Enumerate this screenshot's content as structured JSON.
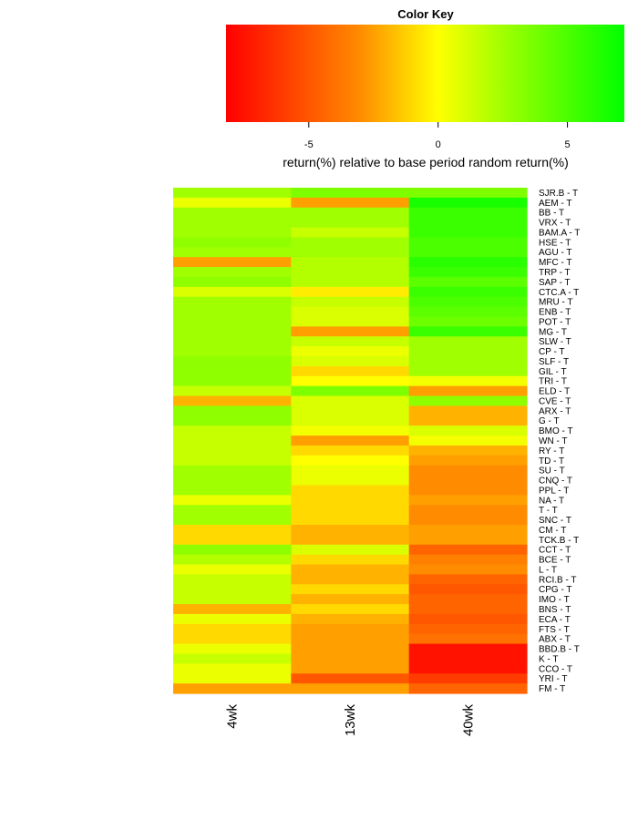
{
  "colors": {
    "scale_low": "#ff0000",
    "scale_orange": "#ff8c00",
    "scale_mid": "#ffff00",
    "scale_lime": "#a0ff00",
    "scale_high": "#00ff00"
  },
  "color_key": {
    "title": "Color Key",
    "range": [
      -8.2,
      7.2
    ],
    "ticks": [
      -5,
      0,
      5
    ],
    "tick_labels": [
      "-5",
      "0",
      "5"
    ],
    "xlabel": "return(%) relative to base period random return(%)"
  },
  "chart_data": {
    "type": "heatmap",
    "columns": [
      "4wk",
      "13wk",
      "40wk"
    ],
    "rows": [
      "SJR.B - T",
      "AEM - T",
      "BB - T",
      "VRX - T",
      "BAM.A - T",
      "HSE - T",
      "AGU - T",
      "MFC - T",
      "TRP - T",
      "SAP - T",
      "CTC.A - T",
      "MRU - T",
      "ENB - T",
      "POT - T",
      "MG - T",
      "SLW - T",
      "CP - T",
      "SLF - T",
      "GIL - T",
      "TRI - T",
      "ELD - T",
      "CVE - T",
      "ARX - T",
      "G - T",
      "BMO - T",
      "WN - T",
      "RY - T",
      "TD - T",
      "SU - T",
      "CNQ - T",
      "PPL - T",
      "NA - T",
      "T - T",
      "SNC - T",
      "CM - T",
      "TCK.B - T",
      "CCT - T",
      "BCE - T",
      "L - T",
      "RCI.B - T",
      "CPG - T",
      "IMO - T",
      "BNS - T",
      "ECA - T",
      "FTS - T",
      "ABX - T",
      "BBD.B - T",
      "K - T",
      "CCO - T",
      "YRI - T",
      "FM - T"
    ],
    "values": [
      [
        2.5,
        3.5,
        3.5
      ],
      [
        0.5,
        -2.5,
        6.5
      ],
      [
        2.5,
        2.5,
        5.5
      ],
      [
        2.5,
        2.5,
        5.5
      ],
      [
        2.5,
        1.5,
        5.5
      ],
      [
        3.0,
        2.5,
        5.0
      ],
      [
        2.5,
        2.5,
        5.0
      ],
      [
        -2.5,
        2.0,
        6.0
      ],
      [
        2.5,
        2.0,
        5.5
      ],
      [
        3.0,
        2.0,
        4.5
      ],
      [
        1.0,
        -0.5,
        5.5
      ],
      [
        2.5,
        1.5,
        5.0
      ],
      [
        2.5,
        1.0,
        4.5
      ],
      [
        2.5,
        1.0,
        4.0
      ],
      [
        2.5,
        -2.5,
        5.5
      ],
      [
        2.5,
        1.5,
        2.5
      ],
      [
        2.5,
        0.5,
        2.5
      ],
      [
        3.0,
        1.0,
        2.5
      ],
      [
        3.0,
        -1.0,
        2.5
      ],
      [
        3.0,
        0.0,
        0.3
      ],
      [
        1.5,
        3.5,
        -2.5
      ],
      [
        -2.0,
        1.0,
        3.0
      ],
      [
        3.0,
        1.0,
        -2.0
      ],
      [
        3.0,
        1.0,
        -2.0
      ],
      [
        1.5,
        0.3,
        1.0
      ],
      [
        1.5,
        -2.5,
        0.3
      ],
      [
        1.5,
        -1.0,
        -2.0
      ],
      [
        1.5,
        0.0,
        -2.5
      ],
      [
        2.5,
        0.5,
        -3.0
      ],
      [
        2.5,
        0.5,
        -3.0
      ],
      [
        2.5,
        -1.0,
        -3.0
      ],
      [
        0.5,
        -1.0,
        -2.5
      ],
      [
        2.5,
        -1.0,
        -3.0
      ],
      [
        2.5,
        -1.0,
        -3.0
      ],
      [
        -1.0,
        -2.0,
        -2.5
      ],
      [
        -1.0,
        -2.0,
        -2.5
      ],
      [
        3.0,
        1.0,
        -4.5
      ],
      [
        2.0,
        -1.0,
        -3.5
      ],
      [
        0.5,
        -2.0,
        -3.0
      ],
      [
        1.5,
        -2.0,
        -4.5
      ],
      [
        1.5,
        -1.0,
        -5.0
      ],
      [
        1.5,
        -2.0,
        -4.5
      ],
      [
        -2.0,
        -1.0,
        -4.5
      ],
      [
        0.5,
        -2.0,
        -5.0
      ],
      [
        -1.0,
        -2.5,
        -4.5
      ],
      [
        -1.0,
        -2.5,
        -4.0
      ],
      [
        0.5,
        -2.5,
        -7.5
      ],
      [
        1.5,
        -2.5,
        -7.5
      ],
      [
        0.5,
        -2.5,
        -7.5
      ],
      [
        0.5,
        -5.0,
        -6.0
      ],
      [
        -2.5,
        -2.5,
        -4.5
      ]
    ]
  }
}
